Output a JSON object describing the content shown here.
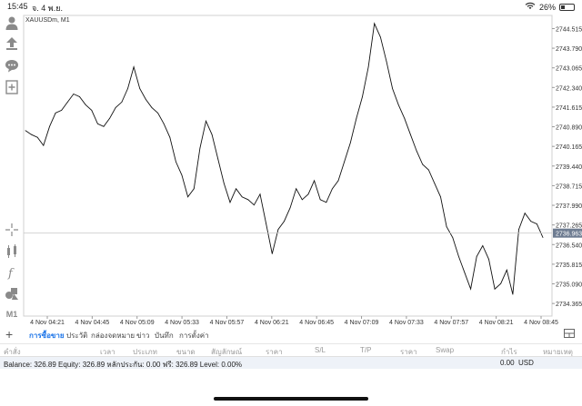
{
  "status": {
    "time": "15:45",
    "date": "จ. 4 พ.ย.",
    "battery": "26%"
  },
  "chart": {
    "symbol_label": "XAUUSDm, M1",
    "current_price": "2736.963",
    "price_labels": [
      "2744.515",
      "2743.790",
      "2743.065",
      "2742.340",
      "2741.615",
      "2740.890",
      "2740.165",
      "2739.440",
      "2738.715",
      "2737.990",
      "2737.265",
      "2736.540",
      "2735.815",
      "2735.090",
      "2734.365"
    ],
    "time_labels": [
      "4 Nov 04:21",
      "4 Nov 04:45",
      "4 Nov 05:09",
      "4 Nov 05:33",
      "4 Nov 05:57",
      "4 Nov 06:21",
      "4 Nov 06:45",
      "4 Nov 07:09",
      "4 Nov 07:33",
      "4 Nov 07:57",
      "4 Nov 08:21",
      "4 Nov 08:45"
    ]
  },
  "chart_data": {
    "type": "line",
    "title": "XAUUSDm, M1",
    "xlabel": "",
    "ylabel": "",
    "ylim": [
      2733.9,
      2745.0
    ],
    "current_price": 2736.963,
    "x": [
      "04:15",
      "04:18",
      "04:21",
      "04:24",
      "04:27",
      "04:30",
      "04:33",
      "04:36",
      "04:39",
      "04:42",
      "04:45",
      "04:48",
      "04:51",
      "04:54",
      "04:57",
      "05:00",
      "05:03",
      "05:06",
      "05:09",
      "05:12",
      "05:15",
      "05:18",
      "05:21",
      "05:24",
      "05:27",
      "05:30",
      "05:33",
      "05:36",
      "05:39",
      "05:42",
      "05:45",
      "05:48",
      "05:51",
      "05:54",
      "05:57",
      "06:00",
      "06:03",
      "06:06",
      "06:09",
      "06:12",
      "06:15",
      "06:18",
      "06:21",
      "06:24",
      "06:27",
      "06:30",
      "06:33",
      "06:36",
      "06:39",
      "06:42",
      "06:45",
      "06:48",
      "06:51",
      "06:54",
      "06:57",
      "07:00",
      "07:03",
      "07:06",
      "07:09",
      "07:12",
      "07:15",
      "07:18",
      "07:21",
      "07:24",
      "07:27",
      "07:30",
      "07:33",
      "07:36",
      "07:39",
      "07:42",
      "07:45",
      "07:48",
      "07:51",
      "07:54",
      "07:57",
      "08:00",
      "08:03",
      "08:06",
      "08:09",
      "08:12",
      "08:15",
      "08:18",
      "08:21",
      "08:24",
      "08:27",
      "08:30",
      "08:33"
    ],
    "series": [
      {
        "values": [
          2740.75,
          2740.6,
          2740.5,
          2740.2,
          2740.9,
          2741.4,
          2741.5,
          2741.8,
          2742.1,
          2742.0,
          2741.7,
          2741.5,
          2741.0,
          2740.9,
          2741.2,
          2741.6,
          2741.8,
          2742.3,
          2743.1,
          2742.3,
          2741.9,
          2741.6,
          2741.4,
          2741.0,
          2740.5,
          2739.6,
          2739.1,
          2738.3,
          2738.6,
          2740.1,
          2741.1,
          2740.6,
          2739.7,
          2738.8,
          2738.1,
          2738.6,
          2738.3,
          2738.2,
          2738.0,
          2738.4,
          2737.3,
          2736.2,
          2737.1,
          2737.4,
          2737.9,
          2738.6,
          2738.2,
          2738.4,
          2738.9,
          2738.2,
          2738.1,
          2738.6,
          2738.9,
          2739.6,
          2740.3,
          2741.2,
          2742.0,
          2743.1,
          2744.7,
          2744.2,
          2743.3,
          2742.3,
          2741.7,
          2741.2,
          2740.6,
          2740.0,
          2739.5,
          2739.3,
          2738.8,
          2738.3,
          2737.2,
          2736.8,
          2736.1,
          2735.5,
          2734.9,
          2736.1,
          2736.5,
          2736.0,
          2734.9,
          2735.1,
          2735.6,
          2734.7,
          2737.1,
          2737.7,
          2737.4,
          2737.3,
          2736.8
        ]
      }
    ]
  },
  "toolbar": {
    "icons": [
      "profile-icon",
      "upload-icon",
      "chat-icon",
      "new-order-icon",
      "crosshair-icon",
      "indicators-icon",
      "function-icon",
      "objects-icon",
      "timeframe-icon"
    ],
    "timeframe_label": "M1"
  },
  "bottom_tabs": {
    "items": [
      "การซื้อขาย",
      "ประวัติ",
      "กล่องจดหมาย",
      "ข่าว",
      "บันทึก",
      "การตั้งค่า"
    ],
    "active_index": 0
  },
  "columns": [
    "คำสั่ง",
    "เวลา",
    "ประเภท",
    "ขนาด",
    "สัญลักษณ์",
    "ราคา",
    "S/L",
    "T/P",
    "ราคา",
    "Swap",
    "กำไร",
    "หมายเหตุ"
  ],
  "summary": {
    "balance_text": "Balance: 326.89 Equity: 326.89 หลักประกัน: 0.00 ฟรี: 326.89 Level: 0.00%",
    "profit": "0.00",
    "currency": "USD"
  }
}
